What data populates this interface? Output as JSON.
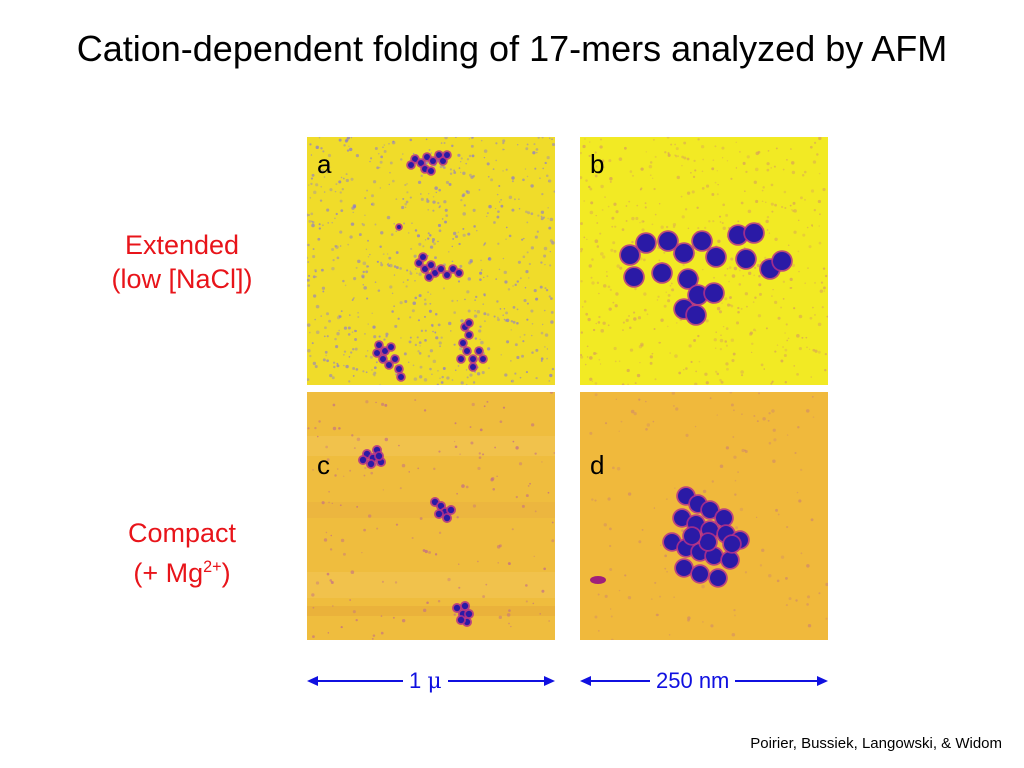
{
  "title": "Cation-dependent folding of 17-mers analyzed by AFM",
  "rows": [
    {
      "label_line1": "Extended",
      "label_line2": "(low [NaCl])"
    },
    {
      "label_line1": "Compact",
      "label_line2_prefix": "(+ Mg",
      "label_line2_sup": "2+",
      "label_line2_suffix": ")"
    }
  ],
  "panels": [
    {
      "letter": "a",
      "background": "#f0dc2a"
    },
    {
      "letter": "b",
      "background": "#f2ea24"
    },
    {
      "letter": "c",
      "background": "#efbd3e"
    },
    {
      "letter": "d",
      "background": "#f0b93c"
    }
  ],
  "scale_bars": [
    {
      "label_number": "1 ",
      "label_unit": "μ"
    },
    {
      "label": "250 nm"
    }
  ],
  "credit": "Poirier, Bussiek, Langowski, & Widom",
  "colors": {
    "title": "#000000",
    "row_label": "#e8141a",
    "scale": "#1010e0",
    "particle": "#2a1a9a",
    "particle_rim": "#a0207a"
  }
}
